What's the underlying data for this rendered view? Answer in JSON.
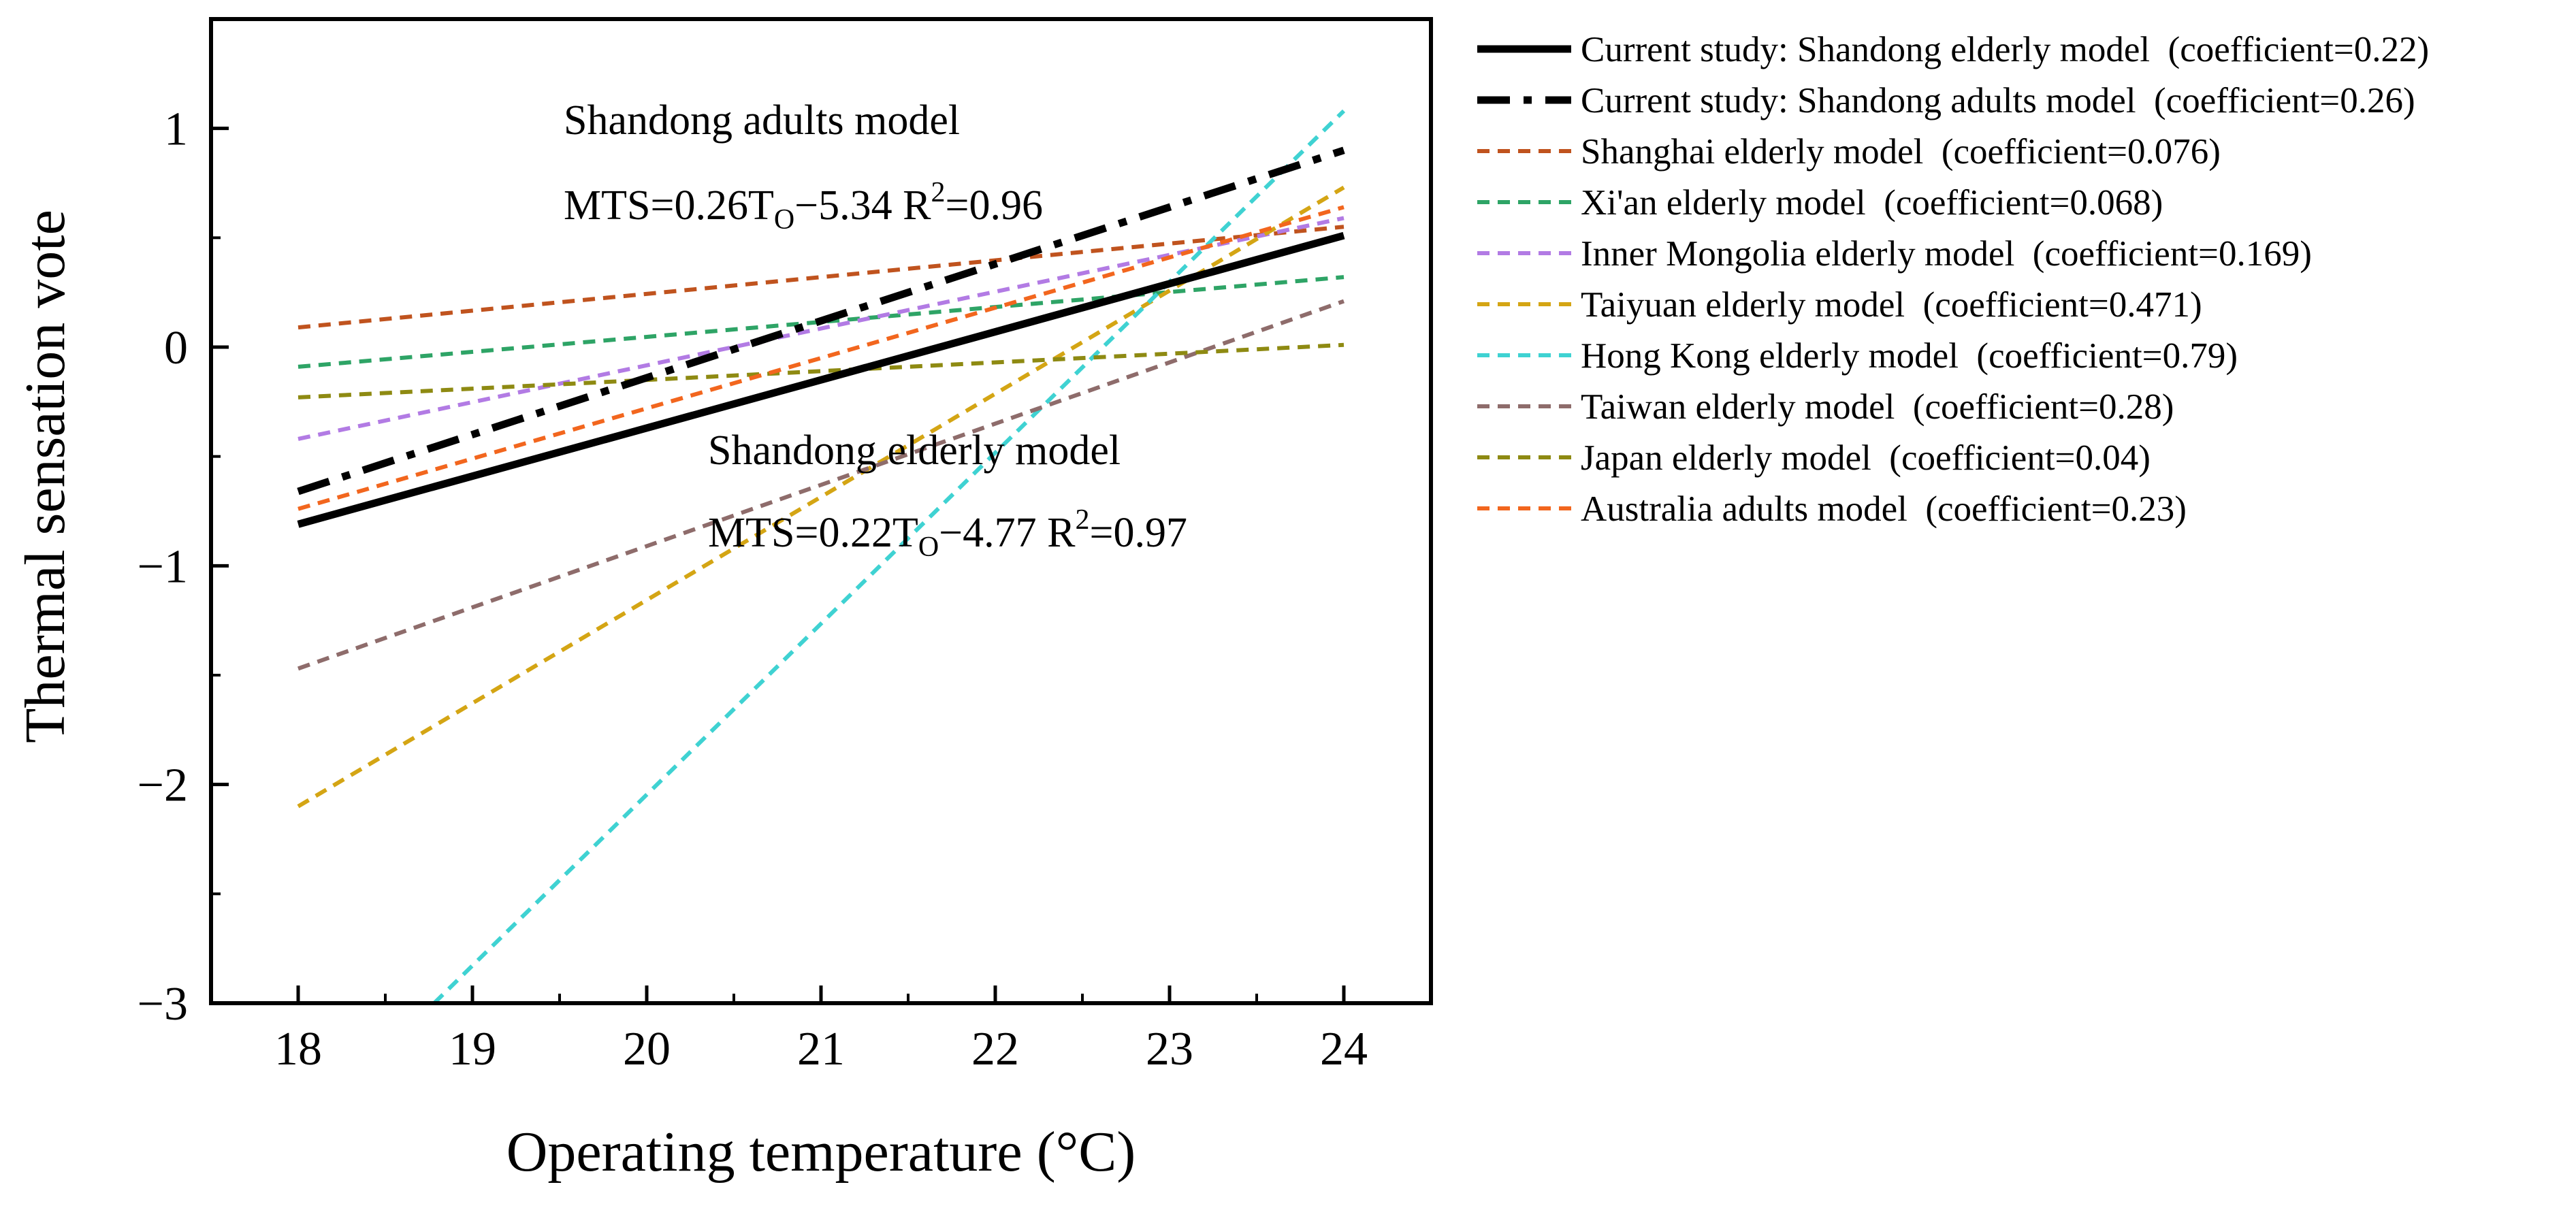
{
  "chart_data": {
    "type": "line",
    "xlabel": "Operating temperature (°C)",
    "ylabel": "Thermal sensation vote",
    "xlim": [
      17.5,
      24.5
    ],
    "ylim": [
      -3,
      1.5
    ],
    "x_ticks": [
      18,
      19,
      20,
      21,
      22,
      23,
      24
    ],
    "x_tick_labels": [
      "18",
      "19",
      "20",
      "21",
      "22",
      "23",
      "24"
    ],
    "y_ticks": [
      -3,
      -2,
      -1,
      0,
      1
    ],
    "y_tick_labels": [
      "−3",
      "−2",
      "−1",
      "0",
      "1"
    ],
    "grid": false,
    "legend_position": "outside-right",
    "annotations": [
      {
        "title": "Shandong adults model",
        "equation_prefix": "MTS=0.26T",
        "equation_sub": "O",
        "equation_mid": "−5.34  R",
        "equation_sup": "2",
        "equation_suffix": "=0.96"
      },
      {
        "title": "Shandong elderly model",
        "equation_prefix": "MTS=0.22T",
        "equation_sub": "O",
        "equation_mid": "−4.77  R",
        "equation_sup": "2",
        "equation_suffix": "=0.97"
      }
    ],
    "series": [
      {
        "name": "Current study: Shandong elderly model",
        "legend_note": "(coefficient=0.22)",
        "color": "#000000",
        "style": "solid",
        "points": [
          [
            18,
            -0.81
          ],
          [
            24,
            0.51
          ]
        ]
      },
      {
        "name": "Current study: Shandong adults model",
        "legend_note": "(coefficient=0.26)",
        "color": "#000000",
        "style": "dashdot",
        "points": [
          [
            18,
            -0.66
          ],
          [
            24,
            0.9
          ]
        ]
      },
      {
        "name": "Shanghai elderly model",
        "legend_note": "(coefficient=0.076)",
        "color": "#c0531e",
        "style": "dashed",
        "points": [
          [
            18,
            0.09
          ],
          [
            24,
            0.55
          ]
        ]
      },
      {
        "name": "Xi'an elderly model",
        "legend_note": "(coefficient=0.068)",
        "color": "#2ea466",
        "style": "dashed",
        "points": [
          [
            18,
            -0.09
          ],
          [
            24,
            0.32
          ]
        ]
      },
      {
        "name": "Inner Mongolia elderly model",
        "legend_note": "(coefficient=0.169)",
        "color": "#b27be4",
        "style": "dashed",
        "points": [
          [
            18,
            -0.42
          ],
          [
            24,
            0.59
          ]
        ]
      },
      {
        "name": "Taiyuan elderly model",
        "legend_note": "(coefficient=0.471)",
        "color": "#d4a514",
        "style": "dashed",
        "points": [
          [
            18,
            -2.1
          ],
          [
            24,
            0.73
          ]
        ]
      },
      {
        "name": "Hong Kong elderly model",
        "legend_note": "(coefficient=0.79)",
        "color": "#3fd2d2",
        "style": "dashed",
        "points": [
          [
            18.78,
            -3.0
          ],
          [
            24,
            1.08
          ]
        ]
      },
      {
        "name": "Taiwan elderly model",
        "legend_note": "(coefficient=0.28)",
        "color": "#8e6c6b",
        "style": "dashed",
        "points": [
          [
            18,
            -1.47
          ],
          [
            24,
            0.21
          ]
        ]
      },
      {
        "name": "Japan elderly model",
        "legend_note": "(coefficient=0.04)",
        "color": "#8e8a12",
        "style": "dashed",
        "points": [
          [
            18,
            -0.23
          ],
          [
            24,
            0.01
          ]
        ]
      },
      {
        "name": "Australia adults model",
        "legend_note": "(coefficient=0.23)",
        "color": "#f2661e",
        "style": "dashed",
        "points": [
          [
            18,
            -0.74
          ],
          [
            24,
            0.64
          ]
        ]
      }
    ]
  }
}
